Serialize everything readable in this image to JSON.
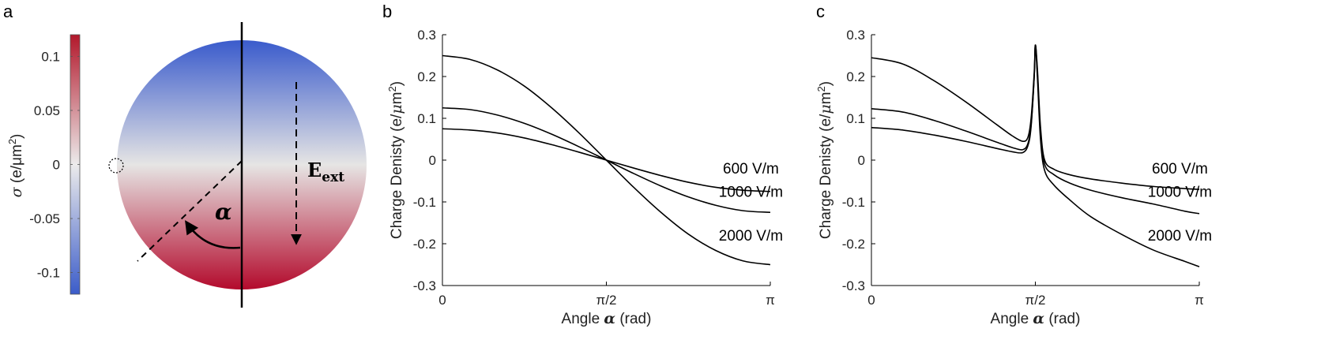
{
  "panels": {
    "a": {
      "letter": "a",
      "colorbar": {
        "label_sigma": "σ",
        "label_unit": "(e/μm",
        "label_sup": "2",
        "label_close": ")",
        "ticks": [
          "0.1",
          "0.05",
          "0",
          "-0.05",
          "-0.1"
        ],
        "tick_values": [
          0.1,
          0.05,
          0,
          -0.05,
          -0.1
        ],
        "range": [
          -0.12,
          0.12
        ],
        "color_top": "#b2182b",
        "color_mid": "#ecebeb",
        "color_bottom": "#3b5cc9"
      },
      "sphere": {
        "alpha_label": "α",
        "field_label_main": "E",
        "field_label_sub": "ext",
        "color_top": "#3a5bcc",
        "color_mid": "#e6e5e4",
        "color_bottom": "#b30a2c"
      }
    },
    "b": {
      "letter": "b"
    },
    "c": {
      "letter": "c"
    }
  },
  "chart_data": [
    {
      "panel": "b",
      "type": "line",
      "title": "",
      "xlabel_prefix": "Angle ",
      "xlabel_symbol": "α",
      "xlabel_suffix": " (rad)",
      "ylabel_main": "Charge Denisty (e/",
      "ylabel_mu": "μ",
      "ylabel_m": "m",
      "ylabel_sup": "2",
      "ylabel_close": ")",
      "xlim": [
        0,
        3.14159
      ],
      "ylim": [
        -0.3,
        0.3
      ],
      "xticks": [
        0,
        1.5708,
        3.14159
      ],
      "xtick_labels": [
        "0",
        "π/2",
        "π"
      ],
      "yticks": [
        0.3,
        0.2,
        0.1,
        0,
        -0.1,
        -0.2,
        -0.3
      ],
      "ytick_labels": [
        "0.3",
        "0.2",
        "0.1",
        "0",
        "-0.1",
        "-0.2",
        "-0.3"
      ],
      "grid": false,
      "series": [
        {
          "name": "600 V/m",
          "label_alpha": 2.88,
          "label_y": -0.04,
          "x": [
            0,
            0.2618,
            0.5236,
            0.7854,
            1.0472,
            1.309,
            1.5708,
            1.8326,
            2.0944,
            2.3562,
            2.618,
            2.8798,
            3.1416
          ],
          "values": [
            0.075,
            0.072,
            0.065,
            0.053,
            0.037,
            0.019,
            0,
            -0.019,
            -0.037,
            -0.053,
            -0.065,
            -0.072,
            -0.075
          ]
        },
        {
          "name": "1000 V/m",
          "label_alpha": 2.88,
          "label_y": -0.095,
          "x": [
            0,
            0.2618,
            0.5236,
            0.7854,
            1.0472,
            1.309,
            1.5708,
            1.8326,
            2.0944,
            2.3562,
            2.618,
            2.8798,
            3.1416
          ],
          "values": [
            0.125,
            0.121,
            0.108,
            0.088,
            0.062,
            0.032,
            0,
            -0.032,
            -0.062,
            -0.088,
            -0.108,
            -0.121,
            -0.125
          ]
        },
        {
          "name": "2000 V/m",
          "label_alpha": 2.88,
          "label_y": -0.2,
          "x": [
            0,
            0.2618,
            0.5236,
            0.7854,
            1.0472,
            1.309,
            1.5708,
            1.8326,
            2.0944,
            2.3562,
            2.618,
            2.8798,
            3.1416
          ],
          "values": [
            0.25,
            0.241,
            0.216,
            0.177,
            0.125,
            0.065,
            0,
            -0.065,
            -0.125,
            -0.177,
            -0.216,
            -0.241,
            -0.25
          ]
        }
      ]
    },
    {
      "panel": "c",
      "type": "line",
      "title": "",
      "xlabel_prefix": "Angle ",
      "xlabel_symbol": "α",
      "xlabel_suffix": " (rad)",
      "ylabel_main": "Charge Denisty (e/",
      "ylabel_mu": "μ",
      "ylabel_m": "m",
      "ylabel_sup": "2",
      "ylabel_close": ")",
      "xlim": [
        0,
        3.14159
      ],
      "ylim": [
        -0.3,
        0.3
      ],
      "xticks": [
        0,
        1.5708,
        3.14159
      ],
      "xtick_labels": [
        "0",
        "π/2",
        "π"
      ],
      "yticks": [
        0.3,
        0.2,
        0.1,
        0,
        -0.1,
        -0.2,
        -0.3
      ],
      "ytick_labels": [
        "0.3",
        "0.2",
        "0.1",
        "0",
        "-0.1",
        "-0.2",
        "-0.3"
      ],
      "grid": false,
      "series": [
        {
          "name": "600 V/m",
          "label_alpha": 2.88,
          "label_y": -0.04,
          "x": [
            0,
            0.3,
            0.6,
            0.9,
            1.2,
            1.35,
            1.45,
            1.5,
            1.53,
            1.56,
            1.5708,
            1.59,
            1.62,
            1.66,
            1.75,
            1.9,
            2.1,
            2.4,
            2.7,
            3.0,
            3.1416
          ],
          "values": [
            0.078,
            0.072,
            0.06,
            0.045,
            0.028,
            0.02,
            0.018,
            0.035,
            0.08,
            0.2,
            0.275,
            0.22,
            0.08,
            0.0,
            -0.022,
            -0.035,
            -0.045,
            -0.055,
            -0.063,
            -0.068,
            -0.07
          ]
        },
        {
          "name": "1000 V/m",
          "label_alpha": 2.88,
          "label_y": -0.095,
          "x": [
            0,
            0.3,
            0.6,
            0.9,
            1.2,
            1.35,
            1.45,
            1.5,
            1.53,
            1.56,
            1.5708,
            1.59,
            1.62,
            1.66,
            1.75,
            1.9,
            2.1,
            2.4,
            2.7,
            3.0,
            3.1416
          ],
          "values": [
            0.123,
            0.115,
            0.095,
            0.07,
            0.043,
            0.03,
            0.025,
            0.04,
            0.085,
            0.2,
            0.275,
            0.21,
            0.07,
            -0.01,
            -0.035,
            -0.055,
            -0.072,
            -0.09,
            -0.105,
            -0.122,
            -0.128
          ]
        },
        {
          "name": "2000 V/m",
          "label_alpha": 2.88,
          "label_y": -0.2,
          "x": [
            0,
            0.3,
            0.6,
            0.9,
            1.2,
            1.35,
            1.45,
            1.5,
            1.53,
            1.56,
            1.5708,
            1.59,
            1.62,
            1.66,
            1.75,
            1.9,
            2.1,
            2.4,
            2.7,
            3.0,
            3.1416
          ],
          "values": [
            0.245,
            0.23,
            0.19,
            0.14,
            0.085,
            0.058,
            0.045,
            0.055,
            0.1,
            0.21,
            0.275,
            0.2,
            0.05,
            -0.025,
            -0.06,
            -0.095,
            -0.135,
            -0.178,
            -0.215,
            -0.242,
            -0.255
          ]
        }
      ]
    }
  ]
}
